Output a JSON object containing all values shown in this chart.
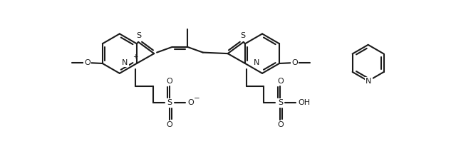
{
  "bg": "#ffffff",
  "lc": "#1a1a1a",
  "lw": 1.5,
  "fs": 8.0,
  "xlim": [
    0,
    640
  ],
  "ylim": [
    0,
    209
  ],
  "figw": 6.4,
  "figh": 2.09,
  "dpi": 100
}
